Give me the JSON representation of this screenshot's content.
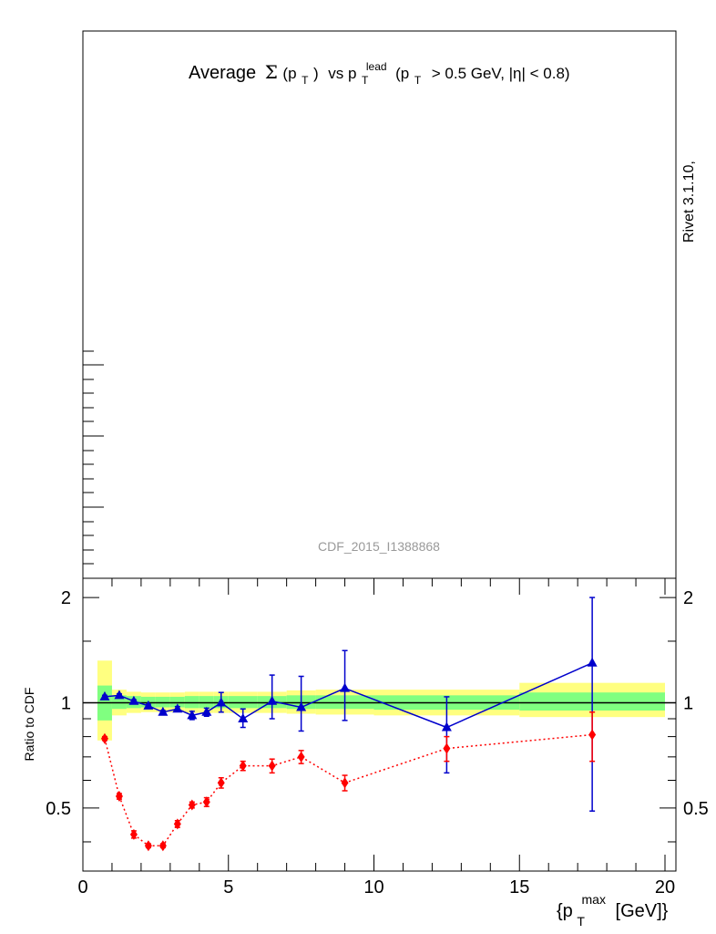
{
  "title": {
    "prefix": "Average",
    "sigma": "Σ",
    "sigma_arg": "(p",
    "sigma_arg_sub": "T",
    "sigma_arg_close": ")",
    "vs": "vs p",
    "vs_sub": "T",
    "vs_sup": "lead",
    "cut": "(p",
    "cut_sub": "T",
    "cut_rest": "> 0.5 GeV, |η| < 0.8)"
  },
  "side_label": "Rivet 3.1.10,",
  "watermark": "CDF_2015_I1388868",
  "chart_data": {
    "type": "line",
    "xlabel": {
      "main": "{p",
      "sub": "T",
      "sup": "max",
      "unit": "[GeV]}"
    },
    "ylabel": "Ratio to CDF",
    "xlim": [
      0,
      20
    ],
    "ylim": [
      0.33,
      2.27
    ],
    "x_ticks": [
      0,
      5,
      10,
      15,
      20
    ],
    "y_ticks": [
      0.5,
      1,
      2
    ],
    "y_tick_labels": [
      "0.5",
      "1",
      "2"
    ],
    "x_tick_labels": [
      "0",
      "5",
      "10",
      "15",
      "20"
    ],
    "reference_bands": {
      "bins": [
        [
          0.5,
          1.0
        ],
        [
          1.0,
          1.5
        ],
        [
          1.5,
          2.0
        ],
        [
          2.0,
          2.5
        ],
        [
          2.5,
          3.0
        ],
        [
          3.0,
          3.5
        ],
        [
          3.5,
          4.0
        ],
        [
          4.0,
          4.5
        ],
        [
          4.5,
          5.0
        ],
        [
          5.0,
          6.0
        ],
        [
          6.0,
          7.0
        ],
        [
          7.0,
          8.0
        ],
        [
          8.0,
          10.0
        ],
        [
          10.0,
          15.0
        ],
        [
          15.0,
          20.0
        ]
      ],
      "inner": [
        [
          0.89,
          1.12
        ],
        [
          0.96,
          1.05
        ],
        [
          0.965,
          1.045
        ],
        [
          0.97,
          1.04
        ],
        [
          0.97,
          1.04
        ],
        [
          0.97,
          1.04
        ],
        [
          0.965,
          1.045
        ],
        [
          0.965,
          1.045
        ],
        [
          0.965,
          1.045
        ],
        [
          0.965,
          1.045
        ],
        [
          0.965,
          1.045
        ],
        [
          0.96,
          1.05
        ],
        [
          0.96,
          1.05
        ],
        [
          0.955,
          1.05
        ],
        [
          0.95,
          1.07
        ]
      ],
      "outer": [
        [
          0.78,
          1.32
        ],
        [
          0.92,
          1.09
        ],
        [
          0.935,
          1.075
        ],
        [
          0.94,
          1.07
        ],
        [
          0.94,
          1.07
        ],
        [
          0.94,
          1.07
        ],
        [
          0.935,
          1.075
        ],
        [
          0.935,
          1.075
        ],
        [
          0.935,
          1.075
        ],
        [
          0.935,
          1.075
        ],
        [
          0.935,
          1.075
        ],
        [
          0.93,
          1.085
        ],
        [
          0.925,
          1.09
        ],
        [
          0.92,
          1.09
        ],
        [
          0.91,
          1.14
        ]
      ]
    },
    "series": [
      {
        "name": "",
        "color": "#0000cc",
        "marker": "triangle",
        "line": "solid",
        "x": [
          0.75,
          1.25,
          1.75,
          2.25,
          2.75,
          3.25,
          3.75,
          4.25,
          4.75,
          5.5,
          6.5,
          7.5,
          9.0,
          12.5,
          17.5
        ],
        "y": [
          1.04,
          1.05,
          1.01,
          0.98,
          0.94,
          0.96,
          0.92,
          0.94,
          1.0,
          0.9,
          1.01,
          0.97,
          1.1,
          0.85,
          1.3
        ],
        "err_lo": [
          0.01,
          0.01,
          0.01,
          0.01,
          0.01,
          0.015,
          0.025,
          0.025,
          0.06,
          0.05,
          0.11,
          0.14,
          0.21,
          0.22,
          0.81
        ],
        "err_hi": [
          0.01,
          0.01,
          0.01,
          0.01,
          0.01,
          0.015,
          0.025,
          0.025,
          0.07,
          0.06,
          0.19,
          0.22,
          0.31,
          0.19,
          0.7
        ]
      },
      {
        "name": "",
        "color": "#ff0000",
        "marker": "diamond",
        "line": "dotted",
        "x": [
          0.75,
          1.25,
          1.75,
          2.25,
          2.75,
          3.25,
          3.75,
          4.25,
          4.75,
          5.5,
          6.5,
          7.5,
          9.0,
          12.5,
          17.5
        ],
        "y": [
          0.79,
          0.54,
          0.42,
          0.39,
          0.39,
          0.45,
          0.51,
          0.52,
          0.59,
          0.66,
          0.66,
          0.7,
          0.59,
          0.74,
          0.81
        ],
        "err_lo": [
          0.01,
          0.01,
          0.01,
          0.005,
          0.005,
          0.01,
          0.01,
          0.015,
          0.02,
          0.02,
          0.03,
          0.03,
          0.03,
          0.06,
          0.13
        ],
        "err_hi": [
          0.01,
          0.01,
          0.01,
          0.005,
          0.005,
          0.01,
          0.01,
          0.015,
          0.02,
          0.02,
          0.03,
          0.03,
          0.03,
          0.06,
          0.13
        ]
      }
    ]
  },
  "colors": {
    "band_inner": "#80ff80",
    "band_outer": "#ffff80",
    "ref_line": "#000000",
    "watermark": "#999999"
  }
}
